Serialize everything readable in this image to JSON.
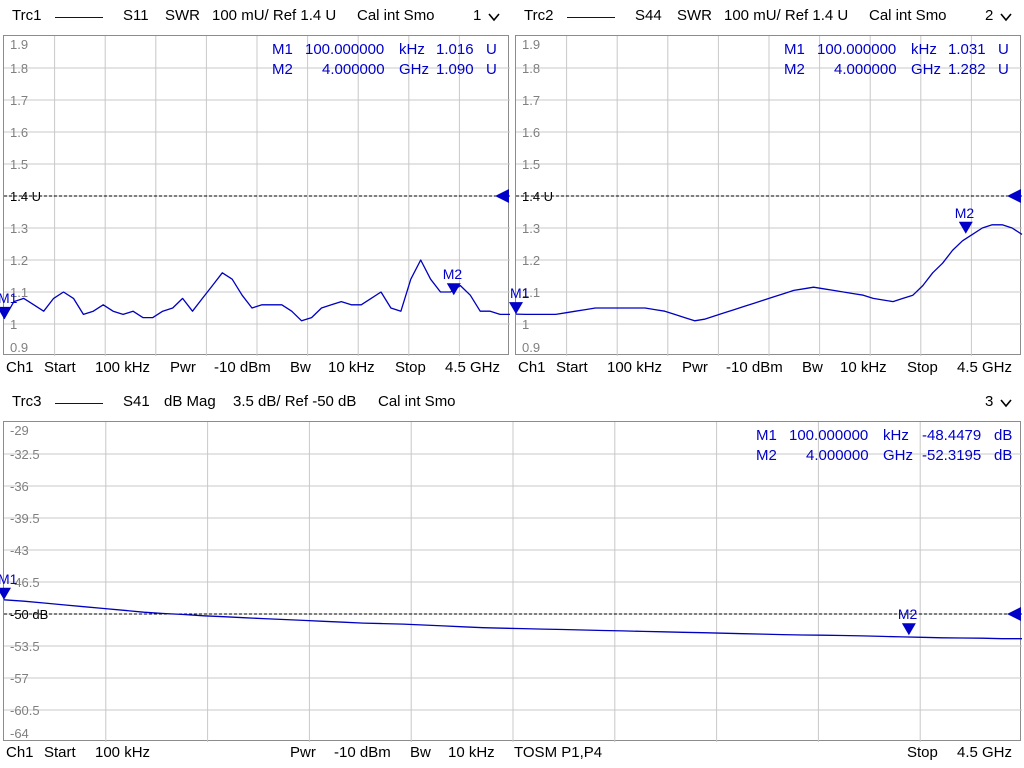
{
  "colors": {
    "trace": "#0000c0",
    "marker": "#0000c8",
    "grid": "#c8c8c8",
    "ref": "#000000",
    "axis_label": "#808080"
  },
  "trc1": {
    "header": {
      "trace": "Trc1",
      "param": "S11",
      "format": "SWR",
      "scale": "100 mU/ Ref 1.4 U",
      "cal": "Cal int Smo",
      "channel": "1"
    },
    "markers": [
      {
        "name": "M1",
        "value": "100.000000",
        "unit": "kHz",
        "reading": "1.016",
        "runit": "U"
      },
      {
        "name": "M2",
        "value": "4.000000",
        "unit": "GHz",
        "reading": "1.090",
        "runit": "U"
      }
    ],
    "yticks": [
      "1.9",
      "1.8",
      "1.7",
      "1.6",
      "1.5",
      "1.4 U",
      "1.3",
      "1.2",
      "1.1",
      "1",
      "0.9"
    ],
    "footer": {
      "ch": "Ch1",
      "start_label": "Start",
      "start": "100 kHz",
      "pwr_label": "Pwr",
      "pwr": "-10 dBm",
      "bw_label": "Bw",
      "bw": "10 kHz",
      "stop_label": "Stop",
      "stop": "4.5 GHz"
    }
  },
  "trc2": {
    "header": {
      "trace": "Trc2",
      "param": "S44",
      "format": "SWR",
      "scale": "100 mU/ Ref 1.4 U",
      "cal": "Cal int Smo",
      "channel": "2"
    },
    "markers": [
      {
        "name": "M1",
        "value": "100.000000",
        "unit": "kHz",
        "reading": "1.031",
        "runit": "U"
      },
      {
        "name": "M2",
        "value": "4.000000",
        "unit": "GHz",
        "reading": "1.282",
        "runit": "U"
      }
    ],
    "yticks": [
      "1.9",
      "1.8",
      "1.7",
      "1.6",
      "1.5",
      "1.4 U",
      "1.3",
      "1.2",
      "1.1",
      "1",
      "0.9"
    ],
    "footer": {
      "ch": "Ch1",
      "start_label": "Start",
      "start": "100 kHz",
      "pwr_label": "Pwr",
      "pwr": "-10 dBm",
      "bw_label": "Bw",
      "bw": "10 kHz",
      "stop_label": "Stop",
      "stop": "4.5 GHz"
    }
  },
  "trc3": {
    "header": {
      "trace": "Trc3",
      "param": "S41",
      "format": "dB Mag",
      "scale": "3.5 dB/ Ref -50 dB",
      "cal": "Cal int Smo",
      "channel": "3"
    },
    "markers": [
      {
        "name": "M1",
        "value": "100.000000",
        "unit": "kHz",
        "reading": "-48.4479",
        "runit": "dB"
      },
      {
        "name": "M2",
        "value": "4.000000",
        "unit": "GHz",
        "reading": "-52.3195",
        "runit": "dB"
      }
    ],
    "yticks": [
      "-29",
      "-32.5",
      "-36",
      "-39.5",
      "-43",
      "-46.5",
      "-50 dB",
      "-53.5",
      "-57",
      "-60.5",
      "-64"
    ],
    "footer": {
      "ch": "Ch1",
      "start_label": "Start",
      "start": "100 kHz",
      "pwr_label": "Pwr",
      "pwr": "-10 dBm",
      "bw_label": "Bw",
      "bw": "10 kHz",
      "cal": "TOSM P1,P4",
      "stop_label": "Stop",
      "stop": "4.5 GHz"
    }
  },
  "chart_data": [
    {
      "type": "line",
      "series": [
        {
          "values": [
            1.016,
            1.07,
            1.08,
            1.06,
            1.04,
            1.08,
            1.1,
            1.08,
            1.03,
            1.04,
            1.06,
            1.04,
            1.03,
            1.04,
            1.02,
            1.02,
            1.04,
            1.05,
            1.08,
            1.04,
            1.08,
            1.12,
            1.16,
            1.14,
            1.09,
            1.05,
            1.06,
            1.06,
            1.06,
            1.04,
            1.01,
            1.02,
            1.05,
            1.06,
            1.07,
            1.06,
            1.06,
            1.08,
            1.1,
            1.05,
            1.04,
            1.14,
            1.2,
            1.14,
            1.1,
            1.1,
            1.12,
            1.09,
            1.04,
            1.04,
            1.03,
            1.03
          ]
        }
      ],
      "x_range": [
        "100 kHz",
        "4.5 GHz"
      ],
      "ylim": [
        0.9,
        1.9
      ],
      "ref_level": 1.4,
      "markers": [
        {
          "name": "M1",
          "x": "100 kHz",
          "y": 1.016
        },
        {
          "name": "M2",
          "x": "4 GHz",
          "y": 1.09
        }
      ]
    },
    {
      "type": "line",
      "series": [
        {
          "values": [
            1.031,
            1.03,
            1.03,
            1.03,
            1.03,
            1.035,
            1.04,
            1.045,
            1.05,
            1.05,
            1.05,
            1.05,
            1.05,
            1.05,
            1.045,
            1.04,
            1.03,
            1.02,
            1.01,
            1.015,
            1.025,
            1.035,
            1.045,
            1.055,
            1.065,
            1.075,
            1.085,
            1.095,
            1.105,
            1.11,
            1.115,
            1.11,
            1.105,
            1.1,
            1.095,
            1.09,
            1.08,
            1.075,
            1.07,
            1.08,
            1.09,
            1.12,
            1.16,
            1.19,
            1.23,
            1.26,
            1.28,
            1.3,
            1.31,
            1.31,
            1.3,
            1.28
          ]
        }
      ],
      "x_range": [
        "100 kHz",
        "4.5 GHz"
      ],
      "ylim": [
        0.9,
        1.9
      ],
      "ref_level": 1.4,
      "markers": [
        {
          "name": "M1",
          "x": "100 kHz",
          "y": 1.031
        },
        {
          "name": "M2",
          "x": "4 GHz",
          "y": 1.282
        }
      ]
    },
    {
      "type": "line",
      "series": [
        {
          "values": [
            -48.45,
            -48.6,
            -48.8,
            -49.0,
            -49.2,
            -49.4,
            -49.6,
            -49.8,
            -49.95,
            -50.05,
            -50.2,
            -50.3,
            -50.4,
            -50.5,
            -50.6,
            -50.7,
            -50.8,
            -50.9,
            -51.0,
            -51.05,
            -51.1,
            -51.2,
            -51.3,
            -51.4,
            -51.5,
            -51.55,
            -51.6,
            -51.65,
            -51.7,
            -51.75,
            -51.8,
            -51.85,
            -51.9,
            -51.95,
            -52.0,
            -52.05,
            -52.1,
            -52.15,
            -52.2,
            -52.25,
            -52.3,
            -52.32,
            -52.35,
            -52.4,
            -52.45,
            -52.5,
            -52.55,
            -52.6,
            -52.62,
            -52.65,
            -52.7,
            -52.7
          ]
        }
      ],
      "x_range": [
        "100 kHz",
        "4.5 GHz"
      ],
      "ylim": [
        -64,
        -29
      ],
      "ref_level": -50,
      "markers": [
        {
          "name": "M1",
          "x": "100 kHz",
          "y": -48.4479
        },
        {
          "name": "M2",
          "x": "4 GHz",
          "y": -52.3195
        }
      ]
    }
  ]
}
